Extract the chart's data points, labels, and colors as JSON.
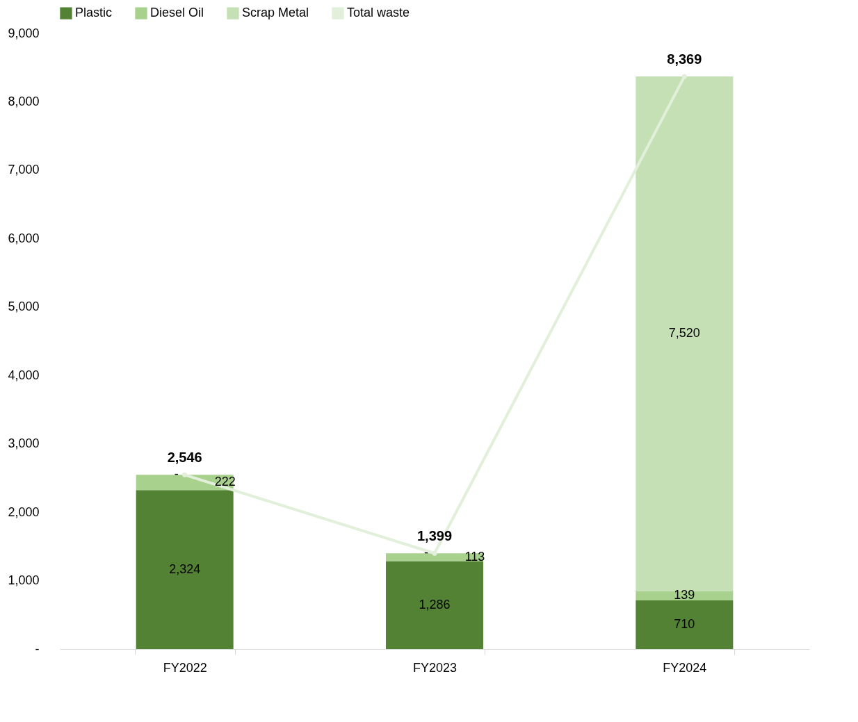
{
  "chart_data": {
    "type": "bar",
    "stacked": true,
    "categories": [
      "FY2022",
      "FY2023",
      "FY2024"
    ],
    "series": [
      {
        "name": "Plastic",
        "color": "#548235",
        "values": [
          2324,
          1286,
          710
        ],
        "value_labels": [
          "2,324",
          "1,286",
          "710"
        ]
      },
      {
        "name": "Diesel Oil",
        "color": "#a9d18e",
        "values": [
          222,
          113,
          139
        ],
        "value_labels": [
          "222",
          "113",
          "139"
        ]
      },
      {
        "name": "Scrap Metal",
        "color": "#c5e0b4",
        "values": [
          0,
          0,
          7520
        ],
        "value_labels": [
          "-",
          "-",
          "7,520"
        ]
      },
      {
        "name": "Total waste",
        "type": "line",
        "color": "#e2efda",
        "marker": "circle",
        "values": [
          2546,
          1399,
          8369
        ],
        "value_labels": [
          "2,546",
          "1,399",
          "8,369"
        ]
      }
    ],
    "ylim": [
      0,
      9000
    ],
    "yticks": [
      {
        "value": 0,
        "label": "-"
      },
      {
        "value": 1000,
        "label": "1,000"
      },
      {
        "value": 2000,
        "label": "2,000"
      },
      {
        "value": 3000,
        "label": "3,000"
      },
      {
        "value": 4000,
        "label": "4,000"
      },
      {
        "value": 5000,
        "label": "5,000"
      },
      {
        "value": 6000,
        "label": "6,000"
      },
      {
        "value": 7000,
        "label": "7,000"
      },
      {
        "value": 8000,
        "label": "8,000"
      },
      {
        "value": 9000,
        "label": "9,000"
      }
    ],
    "grid": false,
    "legend": "top"
  }
}
